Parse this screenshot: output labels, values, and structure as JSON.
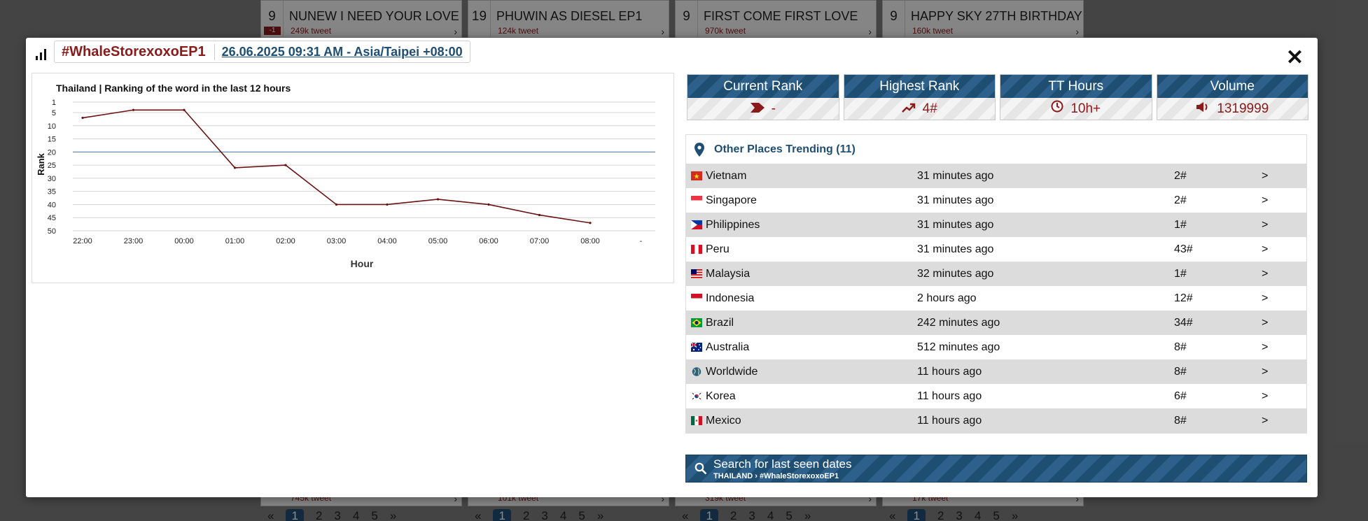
{
  "background": {
    "top_cards": [
      {
        "rank": "9",
        "delta": "-1",
        "title": "NUNEW I NEED YOUR LOVE",
        "tweets": "249k tweet"
      },
      {
        "rank": "19",
        "delta": "",
        "title": "PHUWIN AS DIESEL EP1",
        "tweets": "124k tweet"
      },
      {
        "rank": "9",
        "delta": "",
        "title": "FIRST COME FIRST LOVE",
        "tweets": "970k tweet"
      },
      {
        "rank": "9",
        "delta": "",
        "title": "HAPPY SKY 27TH BIRTHDAY",
        "tweets": "160k tweet"
      }
    ],
    "bottom_cards": [
      {
        "tweets": "745k tweet"
      },
      {
        "tweets": "101k tweet"
      },
      {
        "tweets": "319k tweet"
      },
      {
        "tweets": "17k tweet"
      }
    ],
    "pager": {
      "first": "«",
      "pages": [
        "1",
        "2",
        "3",
        "4",
        "5"
      ],
      "last": "»"
    }
  },
  "modal": {
    "hashtag": "#WhaleStorexoxoEP1",
    "datetime": "26.06.2025 09:31 AM - Asia/Taipei +08:00",
    "close": "✕"
  },
  "chart_data": {
    "type": "line",
    "title": "Thailand | Ranking of the word in the last 12 hours",
    "xlabel": "Hour",
    "ylabel": "Rank",
    "x": [
      "22:00",
      "23:00",
      "00:00",
      "01:00",
      "02:00",
      "03:00",
      "04:00",
      "05:00",
      "06:00",
      "07:00",
      "08:00",
      "-"
    ],
    "y_ticks": [
      1,
      5,
      10,
      15,
      20,
      25,
      30,
      35,
      40,
      45,
      50
    ],
    "ylim": [
      50,
      1
    ],
    "y_reversed": true,
    "series": [
      {
        "values": [
          7,
          4,
          4,
          26,
          25,
          40,
          40,
          38,
          40,
          44,
          47,
          null
        ],
        "color": "#6b1212"
      }
    ],
    "reference_line": 20,
    "grid": true
  },
  "stats": [
    {
      "label": "Current Rank",
      "value": "-",
      "icon": "chevron-icon"
    },
    {
      "label": "Highest Rank",
      "value": "4#",
      "icon": "trending-up-icon"
    },
    {
      "label": "TT Hours",
      "value": "10h+",
      "icon": "clock-icon"
    },
    {
      "label": "Volume",
      "value": "1319999",
      "icon": "volume-icon"
    }
  ],
  "places": {
    "title": "Other Places Trending (11)",
    "rows": [
      {
        "country": "Vietnam",
        "ago": "31 minutes ago",
        "rank": "2#",
        "go": ">"
      },
      {
        "country": "Singapore",
        "ago": "31 minutes ago",
        "rank": "2#",
        "go": ">"
      },
      {
        "country": "Philippines",
        "ago": "31 minutes ago",
        "rank": "1#",
        "go": ">"
      },
      {
        "country": "Peru",
        "ago": "31 minutes ago",
        "rank": "43#",
        "go": ">"
      },
      {
        "country": "Malaysia",
        "ago": "32 minutes ago",
        "rank": "1#",
        "go": ">"
      },
      {
        "country": "Indonesia",
        "ago": "2 hours ago",
        "rank": "12#",
        "go": ">"
      },
      {
        "country": "Brazil",
        "ago": "242 minutes ago",
        "rank": "34#",
        "go": ">"
      },
      {
        "country": "Australia",
        "ago": "512 minutes ago",
        "rank": "8#",
        "go": ">"
      },
      {
        "country": "Worldwide",
        "ago": "11 hours ago",
        "rank": "8#",
        "go": ">"
      },
      {
        "country": "Korea",
        "ago": "11 hours ago",
        "rank": "6#",
        "go": ">"
      },
      {
        "country": "Mexico",
        "ago": "11 hours ago",
        "rank": "8#",
        "go": ">"
      }
    ]
  },
  "search": {
    "title": "Search for last seen dates",
    "subtitle": "THAILAND › #WhaleStorexoxoEP1"
  },
  "colors": {
    "brand_blue": "#1f4e73",
    "accent_red": "#8b1a1a"
  }
}
